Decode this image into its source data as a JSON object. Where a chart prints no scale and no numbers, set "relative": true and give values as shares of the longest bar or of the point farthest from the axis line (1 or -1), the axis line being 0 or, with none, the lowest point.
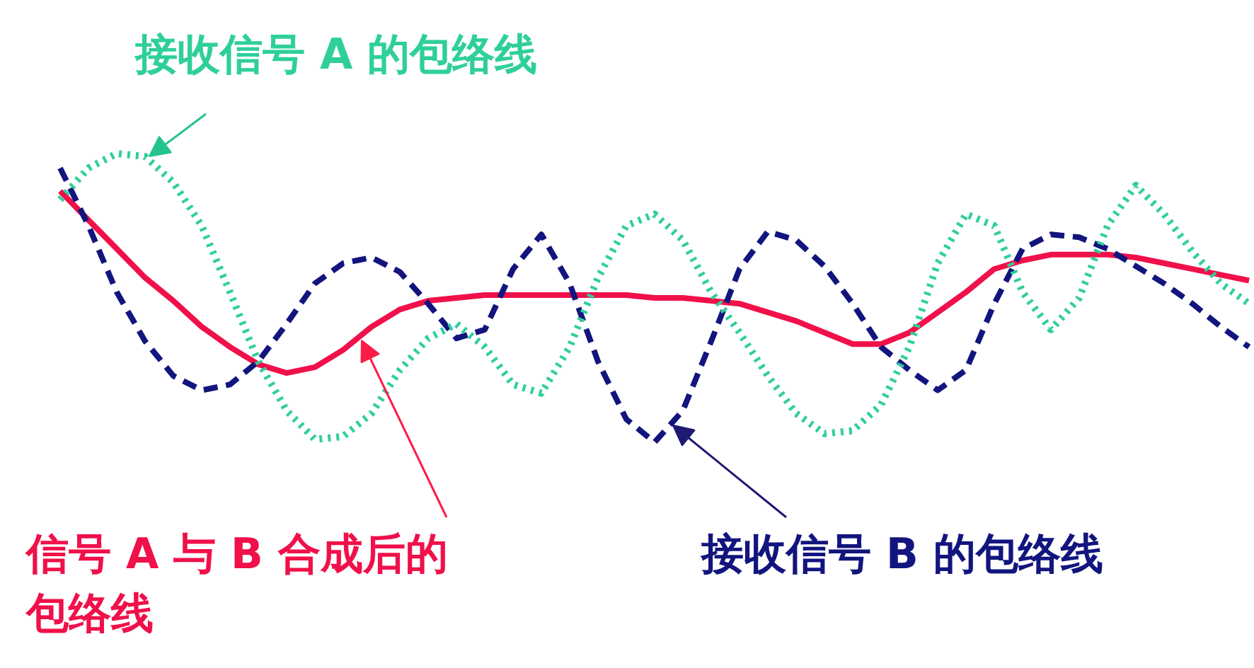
{
  "chart_data": {
    "type": "line",
    "relative": true,
    "categories": [
      null,
      null,
      null,
      null,
      null,
      null,
      null,
      null,
      null,
      null,
      null,
      null,
      null,
      null,
      null,
      null,
      null,
      null,
      null,
      null,
      null,
      null,
      null,
      null,
      null,
      null,
      null,
      null,
      null,
      null,
      null,
      null,
      null,
      null,
      null,
      null,
      null,
      null,
      null,
      null,
      null,
      null,
      null
    ],
    "series": [
      {
        "color": "#f0104a",
        "line_style": "solid",
        "values": [
          0.87,
          0.77,
          0.67,
          0.57,
          0.49,
          0.4,
          0.33,
          0.27,
          0.24,
          0.26,
          0.32,
          0.4,
          0.46,
          0.49,
          0.5,
          0.51,
          0.51,
          0.51,
          0.51,
          0.51,
          0.51,
          0.5,
          0.5,
          0.49,
          0.48,
          0.45,
          0.42,
          0.38,
          0.34,
          0.34,
          0.38,
          0.45,
          0.52,
          0.6,
          0.63,
          0.65,
          0.65,
          0.65,
          0.64,
          0.62,
          0.6,
          0.58,
          0.56
        ]
      },
      {
        "color": "#12157d",
        "line_style": "dashed",
        "values": [
          0.95,
          0.75,
          0.52,
          0.35,
          0.23,
          0.18,
          0.2,
          0.28,
          0.41,
          0.55,
          0.62,
          0.64,
          0.59,
          0.48,
          0.36,
          0.39,
          0.6,
          0.72,
          0.55,
          0.28,
          0.08,
          0,
          0.11,
          0.35,
          0.6,
          0.73,
          0.7,
          0.61,
          0.48,
          0.33,
          0.25,
          0.18,
          0.25,
          0.48,
          0.67,
          0.72,
          0.71,
          0.67,
          0.61,
          0.55,
          0.48,
          0.4,
          0.33
        ]
      },
      {
        "color": "#2fcf9c",
        "line_style": "dotted",
        "values": [
          0.84,
          0.95,
          1,
          0.99,
          0.9,
          0.75,
          0.52,
          0.28,
          0.11,
          0.01,
          0.02,
          0.1,
          0.25,
          0.36,
          0.41,
          0.33,
          0.2,
          0.17,
          0.33,
          0.57,
          0.75,
          0.79,
          0.7,
          0.52,
          0.38,
          0.23,
          0.1,
          0.03,
          0.04,
          0.13,
          0.33,
          0.62,
          0.79,
          0.75,
          0.52,
          0.39,
          0.5,
          0.75,
          0.89,
          0.79,
          0.66,
          0.55,
          0.48
        ]
      }
    ],
    "annotations": [
      "信号 A 与 B 合成后的包络线",
      "接收信号 B 的包络线",
      "接收信号 A 的包络线"
    ]
  }
}
